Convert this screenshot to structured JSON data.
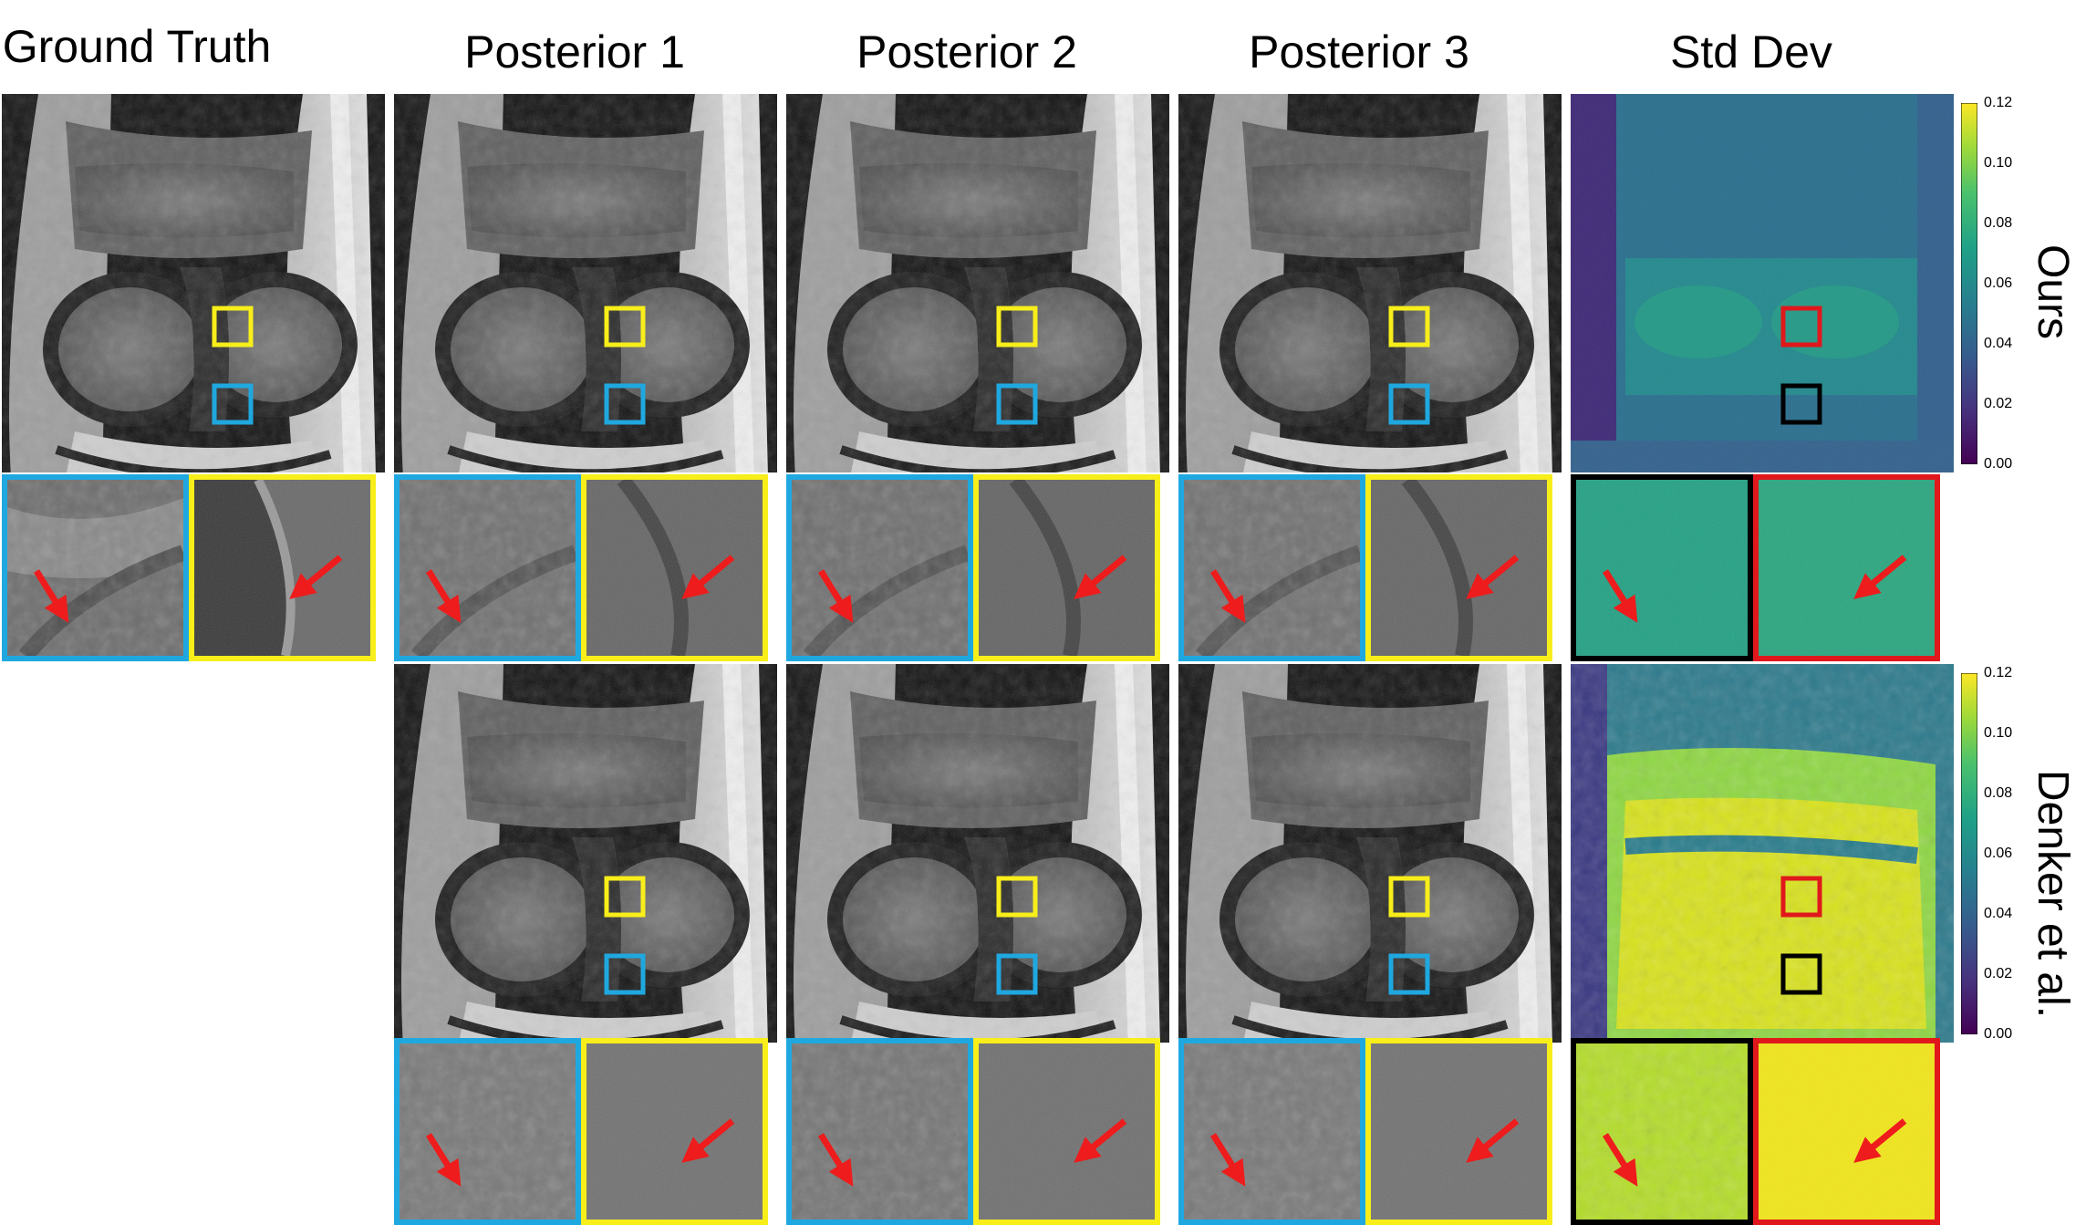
{
  "columns": {
    "ground_truth": "Ground Truth",
    "posterior_1": "Posterior 1",
    "posterior_2": "Posterior 2",
    "posterior_3": "Posterior 3",
    "std_dev": "Std Dev"
  },
  "rows": {
    "ours": "Ours",
    "denker": "Denker et al."
  },
  "colorbar": {
    "ticks": [
      "0.12",
      "0.10",
      "0.08",
      "0.06",
      "0.04",
      "0.02",
      "0.00"
    ]
  },
  "colors": {
    "inset_blue": "#1fa8e0",
    "inset_yellow": "#f7ee1a",
    "inset_red": "#e0181c",
    "inset_black": "#000000",
    "arrow": "#ee1c1c",
    "viridis_dark": "#440154",
    "viridis_mid": "#21918c",
    "viridis_light": "#fde725"
  }
}
